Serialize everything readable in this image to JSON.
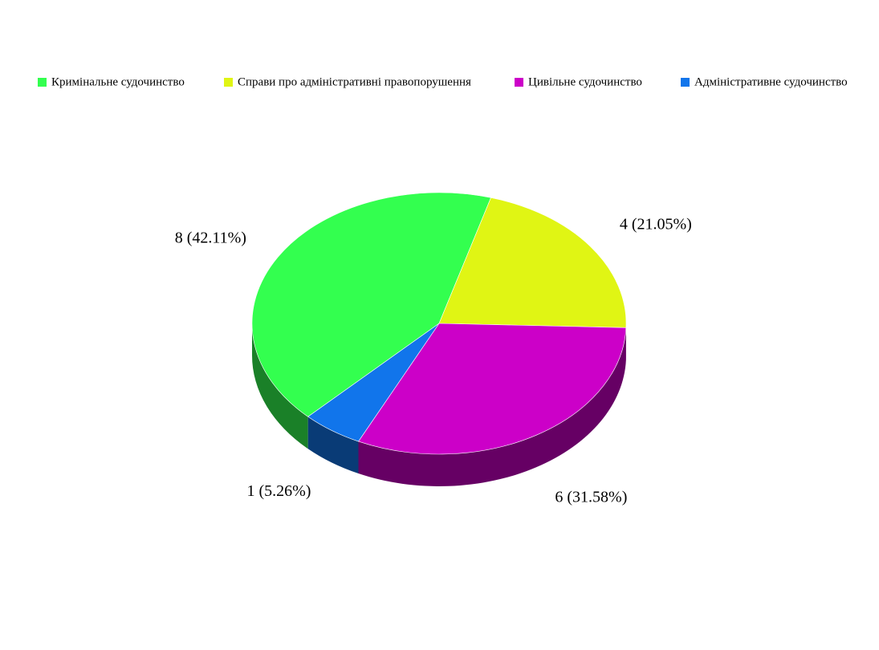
{
  "chart_data": {
    "type": "pie",
    "categories": [
      "Кримінальне судочинство",
      "Справи про адміністративні правопорушення",
      "Цивільне судочинство",
      "Адміністративне судочинство"
    ],
    "values": [
      8,
      4,
      6,
      1
    ],
    "value_labels": [
      "8 (42.11%)",
      "4 (21.05%)",
      "6 (31.58%)",
      "1 (5.26%)"
    ],
    "colors": [
      "#33ff4f",
      "#e0f514",
      "#cc00c8",
      "#1175eb"
    ],
    "legend": "top"
  }
}
